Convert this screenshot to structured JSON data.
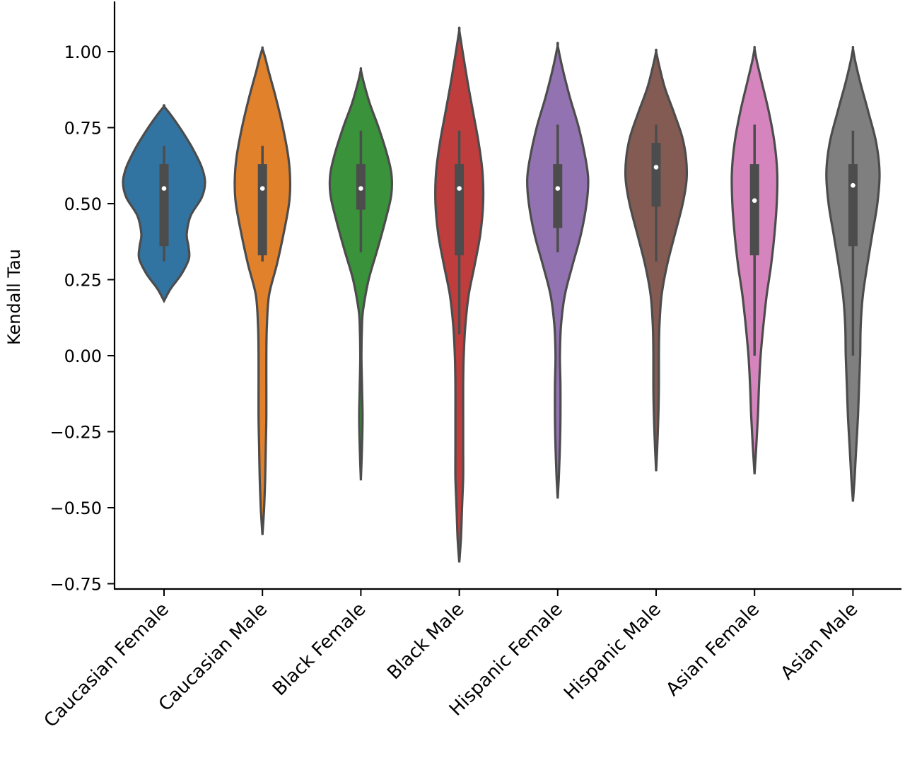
{
  "chart_data": {
    "type": "violin",
    "title": "",
    "xlabel": "",
    "ylabel": "Kendall Tau",
    "ylim": [
      -0.76,
      1.16
    ],
    "yticks": [
      1.0,
      0.75,
      0.5,
      0.25,
      0.0,
      -0.25,
      -0.5,
      -0.75
    ],
    "ytick_labels": [
      "1.00",
      "0.75",
      "0.50",
      "0.25",
      "0.00",
      "−0.25",
      "−0.50",
      "−0.75"
    ],
    "grid": false,
    "legend": "none",
    "categories": [
      "Caucasian Female",
      "Caucasian Male",
      "Black Female",
      "Black Male",
      "Hispanic Female",
      "Hispanic Male",
      "Asian Female",
      "Asian Male"
    ],
    "colors": [
      "#3274a1",
      "#e1812c",
      "#3a923a",
      "#c03d3e",
      "#9372b2",
      "#845b53",
      "#d684bd",
      "#7f7f7f"
    ],
    "series": [
      {
        "min": 0.18,
        "max": 0.82,
        "whisker_low": 0.31,
        "q1": 0.36,
        "median": 0.55,
        "q3": 0.63,
        "whisker_high": 0.69,
        "profile": [
          [
            0.18,
            0.0
          ],
          [
            0.22,
            0.12
          ],
          [
            0.27,
            0.32
          ],
          [
            0.32,
            0.45
          ],
          [
            0.36,
            0.44
          ],
          [
            0.4,
            0.41
          ],
          [
            0.46,
            0.48
          ],
          [
            0.52,
            0.68
          ],
          [
            0.57,
            0.74
          ],
          [
            0.62,
            0.68
          ],
          [
            0.68,
            0.52
          ],
          [
            0.74,
            0.32
          ],
          [
            0.79,
            0.13
          ],
          [
            0.82,
            0.0
          ]
        ]
      },
      {
        "min": -0.59,
        "max": 1.01,
        "whisker_low": 0.31,
        "q1": 0.33,
        "median": 0.55,
        "q3": 0.63,
        "whisker_high": 0.69,
        "profile": [
          [
            -0.59,
            0.0
          ],
          [
            -0.5,
            0.03
          ],
          [
            -0.4,
            0.05
          ],
          [
            -0.3,
            0.06
          ],
          [
            -0.2,
            0.07
          ],
          [
            -0.1,
            0.07
          ],
          [
            0.0,
            0.07
          ],
          [
            0.1,
            0.08
          ],
          [
            0.2,
            0.12
          ],
          [
            0.3,
            0.26
          ],
          [
            0.4,
            0.38
          ],
          [
            0.5,
            0.48
          ],
          [
            0.57,
            0.5
          ],
          [
            0.65,
            0.47
          ],
          [
            0.75,
            0.37
          ],
          [
            0.85,
            0.24
          ],
          [
            0.93,
            0.12
          ],
          [
            0.98,
            0.05
          ],
          [
            1.01,
            0.0
          ]
        ]
      },
      {
        "min": -0.41,
        "max": 0.94,
        "whisker_low": 0.34,
        "q1": 0.48,
        "median": 0.55,
        "q3": 0.63,
        "whisker_high": 0.74,
        "profile": [
          [
            -0.41,
            0.0
          ],
          [
            -0.3,
            0.02
          ],
          [
            -0.2,
            0.03
          ],
          [
            -0.1,
            0.02
          ],
          [
            0.0,
            0.01
          ],
          [
            0.1,
            0.02
          ],
          [
            0.15,
            0.04
          ],
          [
            0.25,
            0.14
          ],
          [
            0.35,
            0.3
          ],
          [
            0.45,
            0.45
          ],
          [
            0.53,
            0.55
          ],
          [
            0.6,
            0.55
          ],
          [
            0.67,
            0.46
          ],
          [
            0.75,
            0.32
          ],
          [
            0.83,
            0.16
          ],
          [
            0.9,
            0.05
          ],
          [
            0.94,
            0.0
          ]
        ]
      },
      {
        "min": -0.68,
        "max": 1.07,
        "whisker_low": 0.07,
        "q1": 0.33,
        "median": 0.55,
        "q3": 0.63,
        "whisker_high": 0.74,
        "profile": [
          [
            -0.68,
            0.0
          ],
          [
            -0.6,
            0.03
          ],
          [
            -0.5,
            0.05
          ],
          [
            -0.4,
            0.07
          ],
          [
            -0.3,
            0.07
          ],
          [
            -0.2,
            0.07
          ],
          [
            -0.1,
            0.07
          ],
          [
            0.0,
            0.08
          ],
          [
            0.1,
            0.11
          ],
          [
            0.2,
            0.17
          ],
          [
            0.3,
            0.28
          ],
          [
            0.4,
            0.38
          ],
          [
            0.5,
            0.43
          ],
          [
            0.6,
            0.42
          ],
          [
            0.7,
            0.35
          ],
          [
            0.8,
            0.25
          ],
          [
            0.9,
            0.15
          ],
          [
            1.0,
            0.06
          ],
          [
            1.07,
            0.0
          ]
        ]
      },
      {
        "min": -0.47,
        "max": 1.02,
        "whisker_low": 0.34,
        "q1": 0.42,
        "median": 0.55,
        "q3": 0.63,
        "whisker_high": 0.76,
        "profile": [
          [
            -0.47,
            0.0
          ],
          [
            -0.4,
            0.02
          ],
          [
            -0.3,
            0.04
          ],
          [
            -0.2,
            0.05
          ],
          [
            -0.1,
            0.05
          ],
          [
            0.0,
            0.04
          ],
          [
            0.1,
            0.06
          ],
          [
            0.2,
            0.13
          ],
          [
            0.3,
            0.27
          ],
          [
            0.4,
            0.42
          ],
          [
            0.5,
            0.52
          ],
          [
            0.58,
            0.55
          ],
          [
            0.65,
            0.5
          ],
          [
            0.75,
            0.38
          ],
          [
            0.85,
            0.22
          ],
          [
            0.95,
            0.08
          ],
          [
            1.02,
            0.0
          ]
        ]
      },
      {
        "min": -0.38,
        "max": 1.0,
        "whisker_low": 0.31,
        "q1": 0.49,
        "median": 0.62,
        "q3": 0.7,
        "whisker_high": 0.76,
        "profile": [
          [
            -0.38,
            0.0
          ],
          [
            -0.3,
            0.02
          ],
          [
            -0.2,
            0.04
          ],
          [
            -0.1,
            0.05
          ],
          [
            0.0,
            0.05
          ],
          [
            0.1,
            0.06
          ],
          [
            0.2,
            0.1
          ],
          [
            0.3,
            0.2
          ],
          [
            0.4,
            0.34
          ],
          [
            0.5,
            0.48
          ],
          [
            0.58,
            0.55
          ],
          [
            0.65,
            0.54
          ],
          [
            0.72,
            0.47
          ],
          [
            0.8,
            0.32
          ],
          [
            0.88,
            0.16
          ],
          [
            0.95,
            0.06
          ],
          [
            1.0,
            0.0
          ]
        ]
      },
      {
        "min": -0.39,
        "max": 1.01,
        "whisker_low": 0.0,
        "q1": 0.33,
        "median": 0.51,
        "q3": 0.63,
        "whisker_high": 0.76,
        "profile": [
          [
            -0.39,
            0.0
          ],
          [
            -0.3,
            0.03
          ],
          [
            -0.2,
            0.06
          ],
          [
            -0.1,
            0.08
          ],
          [
            0.0,
            0.11
          ],
          [
            0.1,
            0.16
          ],
          [
            0.2,
            0.22
          ],
          [
            0.3,
            0.3
          ],
          [
            0.4,
            0.36
          ],
          [
            0.5,
            0.4
          ],
          [
            0.6,
            0.41
          ],
          [
            0.7,
            0.36
          ],
          [
            0.8,
            0.26
          ],
          [
            0.9,
            0.13
          ],
          [
            0.97,
            0.04
          ],
          [
            1.01,
            0.0
          ]
        ]
      },
      {
        "min": -0.48,
        "max": 1.01,
        "whisker_low": 0.0,
        "q1": 0.36,
        "median": 0.56,
        "q3": 0.63,
        "whisker_high": 0.74,
        "profile": [
          [
            -0.48,
            0.0
          ],
          [
            -0.4,
            0.03
          ],
          [
            -0.3,
            0.06
          ],
          [
            -0.2,
            0.09
          ],
          [
            -0.1,
            0.11
          ],
          [
            0.0,
            0.13
          ],
          [
            0.1,
            0.14
          ],
          [
            0.2,
            0.18
          ],
          [
            0.3,
            0.26
          ],
          [
            0.4,
            0.35
          ],
          [
            0.5,
            0.44
          ],
          [
            0.6,
            0.48
          ],
          [
            0.7,
            0.42
          ],
          [
            0.8,
            0.28
          ],
          [
            0.9,
            0.13
          ],
          [
            0.97,
            0.04
          ],
          [
            1.01,
            0.0
          ]
        ]
      }
    ]
  }
}
